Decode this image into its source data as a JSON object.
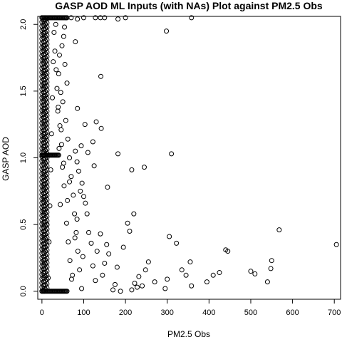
{
  "chart_data": {
    "type": "scatter",
    "title": "GASP AOD ML Inputs (with NAs) Plot against PM2.5 Obs",
    "xlabel": "PM2.5 Obs",
    "ylabel": "GASP AOD",
    "xlim": [
      -10,
      715
    ],
    "ylim": [
      -0.06,
      2.06
    ],
    "x_ticks": [
      0,
      100,
      200,
      300,
      400,
      500,
      600,
      700
    ],
    "y_ticks": [
      0.0,
      0.5,
      1.0,
      1.5,
      2.0
    ],
    "x_tick_labels": [
      "0",
      "100",
      "200",
      "300",
      "400",
      "500",
      "600",
      "700"
    ],
    "y_tick_labels": [
      "0.0",
      "0.5",
      "1.0",
      "1.5",
      "2.0"
    ],
    "grid": false,
    "legend": "none",
    "marker": "open-circle",
    "marker_color": "#000000",
    "points": [
      [
        705,
        0.35
      ],
      [
        568,
        0.46
      ],
      [
        550,
        0.23
      ],
      [
        548,
        0.17
      ],
      [
        540,
        0.07
      ],
      [
        510,
        0.13
      ],
      [
        500,
        0.15
      ],
      [
        440,
        0.31
      ],
      [
        445,
        0.3
      ],
      [
        425,
        0.14
      ],
      [
        410,
        0.12
      ],
      [
        395,
        0.07
      ],
      [
        358,
        0.04
      ],
      [
        355,
        0.22
      ],
      [
        345,
        0.12
      ],
      [
        335,
        0.16
      ],
      [
        322,
        0.36
      ],
      [
        305,
        0.41
      ],
      [
        300,
        0.09
      ],
      [
        295,
        0.02
      ],
      [
        270,
        0.07
      ],
      [
        255,
        0.22
      ],
      [
        248,
        0.16
      ],
      [
        240,
        0.04
      ],
      [
        232,
        0.11
      ],
      [
        228,
        0.03
      ],
      [
        222,
        0.06
      ],
      [
        215,
        0.01
      ],
      [
        210,
        0.45
      ],
      [
        220,
        0.58
      ],
      [
        205,
        0.51
      ],
      [
        195,
        0.33
      ],
      [
        188,
        0.0
      ],
      [
        180,
        0.18
      ],
      [
        175,
        0.05
      ],
      [
        170,
        0.01
      ],
      [
        160,
        0.28
      ],
      [
        155,
        0.35
      ],
      [
        150,
        0.21
      ],
      [
        145,
        0.12
      ],
      [
        140,
        0.43
      ],
      [
        132,
        0.3
      ],
      [
        128,
        0.08
      ],
      [
        122,
        0.19
      ],
      [
        118,
        0.36
      ],
      [
        112,
        0.44
      ],
      [
        108,
        0.58
      ],
      [
        104,
        0.66
      ],
      [
        100,
        0.71
      ],
      [
        96,
        0.81
      ],
      [
        92,
        0.75
      ],
      [
        88,
        0.9
      ],
      [
        84,
        0.97
      ],
      [
        80,
        1.05
      ],
      [
        94,
        1.09
      ],
      [
        110,
        1.04
      ],
      [
        125,
        0.94
      ],
      [
        157,
        0.78
      ],
      [
        182,
        1.03
      ],
      [
        215,
        0.91
      ],
      [
        245,
        0.93
      ],
      [
        310,
        1.03
      ],
      [
        142,
        1.22
      ],
      [
        130,
        1.27
      ],
      [
        103,
        1.25
      ],
      [
        85,
        1.37
      ],
      [
        122,
        1.12
      ],
      [
        141,
        1.61
      ],
      [
        80,
        1.87
      ],
      [
        298,
        1.95
      ],
      [
        358,
        2.05
      ],
      [
        200,
        2.05
      ],
      [
        182,
        2.04
      ],
      [
        150,
        2.05
      ],
      [
        140,
        2.05
      ],
      [
        128,
        2.05
      ],
      [
        100,
        2.05
      ],
      [
        85,
        2.04
      ],
      [
        70,
        2.05
      ],
      [
        58,
        2.05
      ],
      [
        54,
        1.98
      ],
      [
        52,
        1.91
      ],
      [
        48,
        1.84
      ],
      [
        42,
        1.77
      ],
      [
        55,
        1.7
      ],
      [
        40,
        1.63
      ],
      [
        60,
        1.56
      ],
      [
        45,
        1.49
      ],
      [
        50,
        1.42
      ],
      [
        38,
        1.35
      ],
      [
        57,
        1.28
      ],
      [
        46,
        1.21
      ],
      [
        62,
        1.14
      ],
      [
        41,
        1.07
      ],
      [
        66,
        1.0
      ],
      [
        49,
        0.93
      ],
      [
        70,
        0.86
      ],
      [
        53,
        0.79
      ],
      [
        75,
        0.72
      ],
      [
        44,
        0.65
      ],
      [
        78,
        0.58
      ],
      [
        59,
        0.51
      ],
      [
        82,
        0.44
      ],
      [
        63,
        0.37
      ],
      [
        86,
        0.3
      ],
      [
        67,
        0.23
      ],
      [
        90,
        0.16
      ],
      [
        71,
        0.09
      ],
      [
        95,
        0.02
      ],
      [
        73,
        0.12
      ],
      [
        98,
        0.26
      ],
      [
        79,
        0.4
      ],
      [
        84,
        0.54
      ],
      [
        61,
        0.68
      ],
      [
        66,
        0.82
      ],
      [
        52,
        0.96
      ],
      [
        47,
        1.1
      ],
      [
        43,
        1.24
      ],
      [
        39,
        1.38
      ],
      [
        36,
        1.52
      ],
      [
        34,
        1.66
      ],
      [
        31,
        1.8
      ],
      [
        29,
        1.94
      ],
      [
        33,
        2.0
      ],
      [
        27,
        1.72
      ],
      [
        25,
        1.45
      ],
      [
        23,
        1.18
      ],
      [
        21,
        0.91
      ],
      [
        19,
        0.64
      ],
      [
        17,
        0.37
      ],
      [
        15,
        0.1
      ],
      [
        12,
        0.5
      ]
    ],
    "dense_band": {
      "x_range": [
        0,
        12
      ],
      "y_range": [
        0.0,
        2.05
      ],
      "note": "solid overlapping open circles near zero"
    },
    "horizontal_lines": [
      {
        "y": 2.05,
        "x_range": [
          0,
          60
        ]
      },
      {
        "y": 1.02,
        "x_range": [
          0,
          40
        ]
      },
      {
        "y": 0.0,
        "x_range": [
          0,
          60
        ]
      }
    ]
  }
}
